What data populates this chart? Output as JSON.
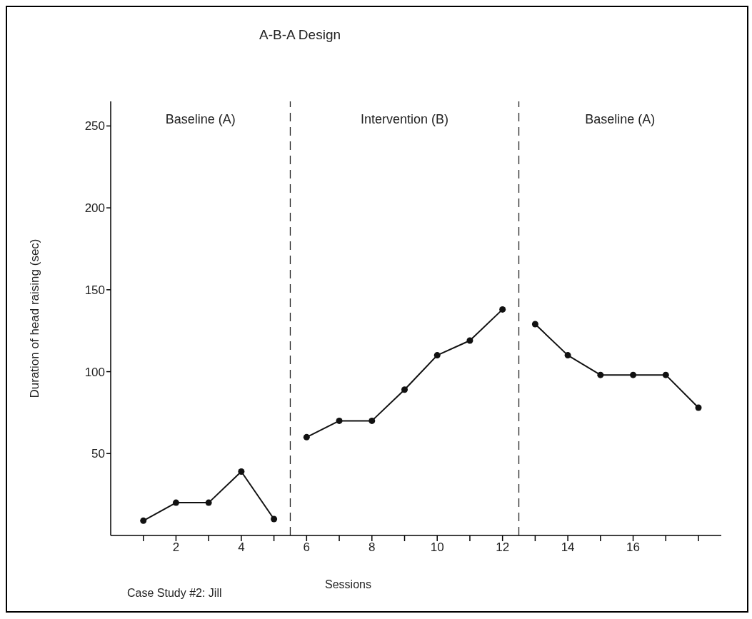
{
  "chart_data": {
    "type": "line",
    "title": "A-B-A Design",
    "xlabel": "Sessions",
    "ylabel": "Duration of head raising (sec)",
    "series": [
      {
        "color": "#111111",
        "x": [
          1,
          2,
          3,
          4,
          5
        ],
        "values": [
          9,
          20,
          20,
          39,
          10
        ]
      },
      {
        "color": "#111111",
        "x": [
          6,
          7,
          8,
          9,
          10,
          11,
          12
        ],
        "values": [
          60,
          70,
          70,
          89,
          110,
          119,
          138
        ]
      },
      {
        "color": "#111111",
        "x": [
          13,
          14,
          15,
          16,
          17,
          18
        ],
        "values": [
          129,
          110,
          98,
          98,
          98,
          78
        ]
      }
    ],
    "xlim": [
      0,
      18.7
    ],
    "xticks": [
      {
        "value": 1,
        "label": null
      },
      2,
      {
        "value": 3,
        "label": null
      },
      4,
      {
        "value": 5,
        "label": null
      },
      6,
      {
        "value": 7,
        "label": null
      },
      8,
      {
        "value": 9,
        "label": null
      },
      10,
      {
        "value": 11,
        "label": null
      },
      12,
      {
        "value": 13,
        "label": null
      },
      14,
      {
        "value": 15,
        "label": null
      },
      16,
      {
        "value": 17,
        "label": null
      },
      {
        "value": 18,
        "label": null
      }
    ],
    "ylim": [
      0,
      265
    ],
    "yticks": [
      50,
      100,
      150,
      200,
      250
    ],
    "ref_lines": [
      {
        "axis": "x",
        "value": 5.5,
        "line_style": "dashed"
      },
      {
        "axis": "x",
        "value": 12.5,
        "line_style": "dashed"
      }
    ],
    "annotations": [
      "Baseline (A)",
      "Intervention (B)",
      "Baseline (A)",
      "Case Study #2: Jill"
    ],
    "grid": false,
    "legend": false,
    "marker": "circle",
    "line_style": "solid"
  }
}
